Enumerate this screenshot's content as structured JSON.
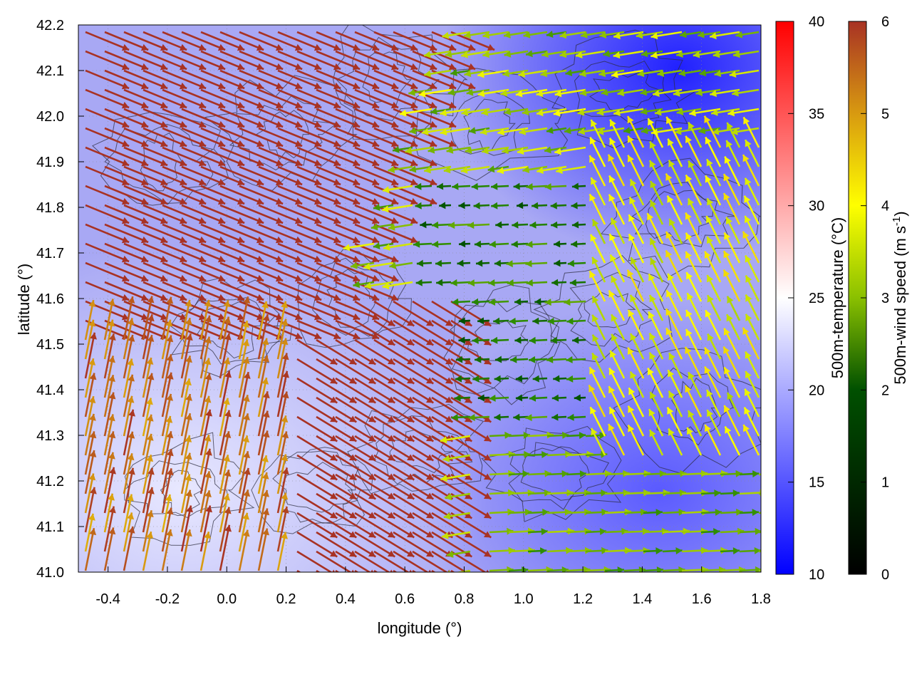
{
  "chart_data": {
    "type": "heatmap",
    "subtype": "vector-field-over-temperature-map-with-contours",
    "xlabel": "longitude (°)",
    "ylabel": "latitude (°)",
    "xlim": [
      -0.5,
      1.8
    ],
    "ylim": [
      41.0,
      42.2
    ],
    "xticks": [
      "-0.4",
      "-0.2",
      "0.0",
      "0.2",
      "0.4",
      "0.6",
      "0.8",
      "1.0",
      "1.2",
      "1.4",
      "1.6",
      "1.8"
    ],
    "xtick_values": [
      -0.4,
      -0.2,
      0.0,
      0.2,
      0.4,
      0.6,
      0.8,
      1.0,
      1.2,
      1.4,
      1.6,
      1.8
    ],
    "yticks": [
      "41.0",
      "41.1",
      "41.2",
      "41.3",
      "41.4",
      "41.5",
      "41.6",
      "41.7",
      "41.8",
      "41.9",
      "42.0",
      "42.1",
      "42.2"
    ],
    "ytick_values": [
      41.0,
      41.1,
      41.2,
      41.3,
      41.4,
      41.5,
      41.6,
      41.7,
      41.8,
      41.9,
      42.0,
      42.1,
      42.2
    ],
    "grid": true,
    "temperature_colorbar": {
      "label": "500m-temperature (°C)",
      "range": [
        10,
        40
      ],
      "ticks": [
        "10",
        "15",
        "20",
        "25",
        "30",
        "35",
        "40"
      ],
      "tick_values": [
        10,
        15,
        20,
        25,
        30,
        35,
        40
      ],
      "colors": [
        "#0000ff",
        "#ffffff",
        "#ff0000"
      ]
    },
    "wind_colorbar": {
      "label_main": "500m-wind speed (m s",
      "label_sup": "-1",
      "label_end": ")",
      "range": [
        0,
        6
      ],
      "ticks": [
        "0",
        "1",
        "2",
        "3",
        "4",
        "5",
        "6"
      ],
      "tick_values": [
        0,
        1,
        2,
        3,
        4,
        5,
        6
      ],
      "colors": [
        "#000000",
        "#005000",
        "#2a8a00",
        "#9ac800",
        "#ffff00",
        "#d89a10",
        "#a83224"
      ]
    },
    "temperature_regions": [
      {
        "region": "west-southwest",
        "approx_temp": 22
      },
      {
        "region": "center",
        "approx_temp": 18
      },
      {
        "region": "northeast",
        "approx_temp": 13
      },
      {
        "region": "southeast",
        "approx_temp": 16
      }
    ],
    "wind_regions": [
      {
        "region": "northwest",
        "approx_speed": 6,
        "direction": "toward southeast"
      },
      {
        "region": "southwest",
        "approx_speed": 5,
        "direction": "toward north"
      },
      {
        "region": "center",
        "approx_speed": 1.5,
        "direction": "toward west"
      },
      {
        "region": "east",
        "approx_speed": 3.5,
        "direction": "toward northwest"
      },
      {
        "region": "southeast",
        "approx_speed": 2.5,
        "direction": "toward east"
      }
    ]
  }
}
